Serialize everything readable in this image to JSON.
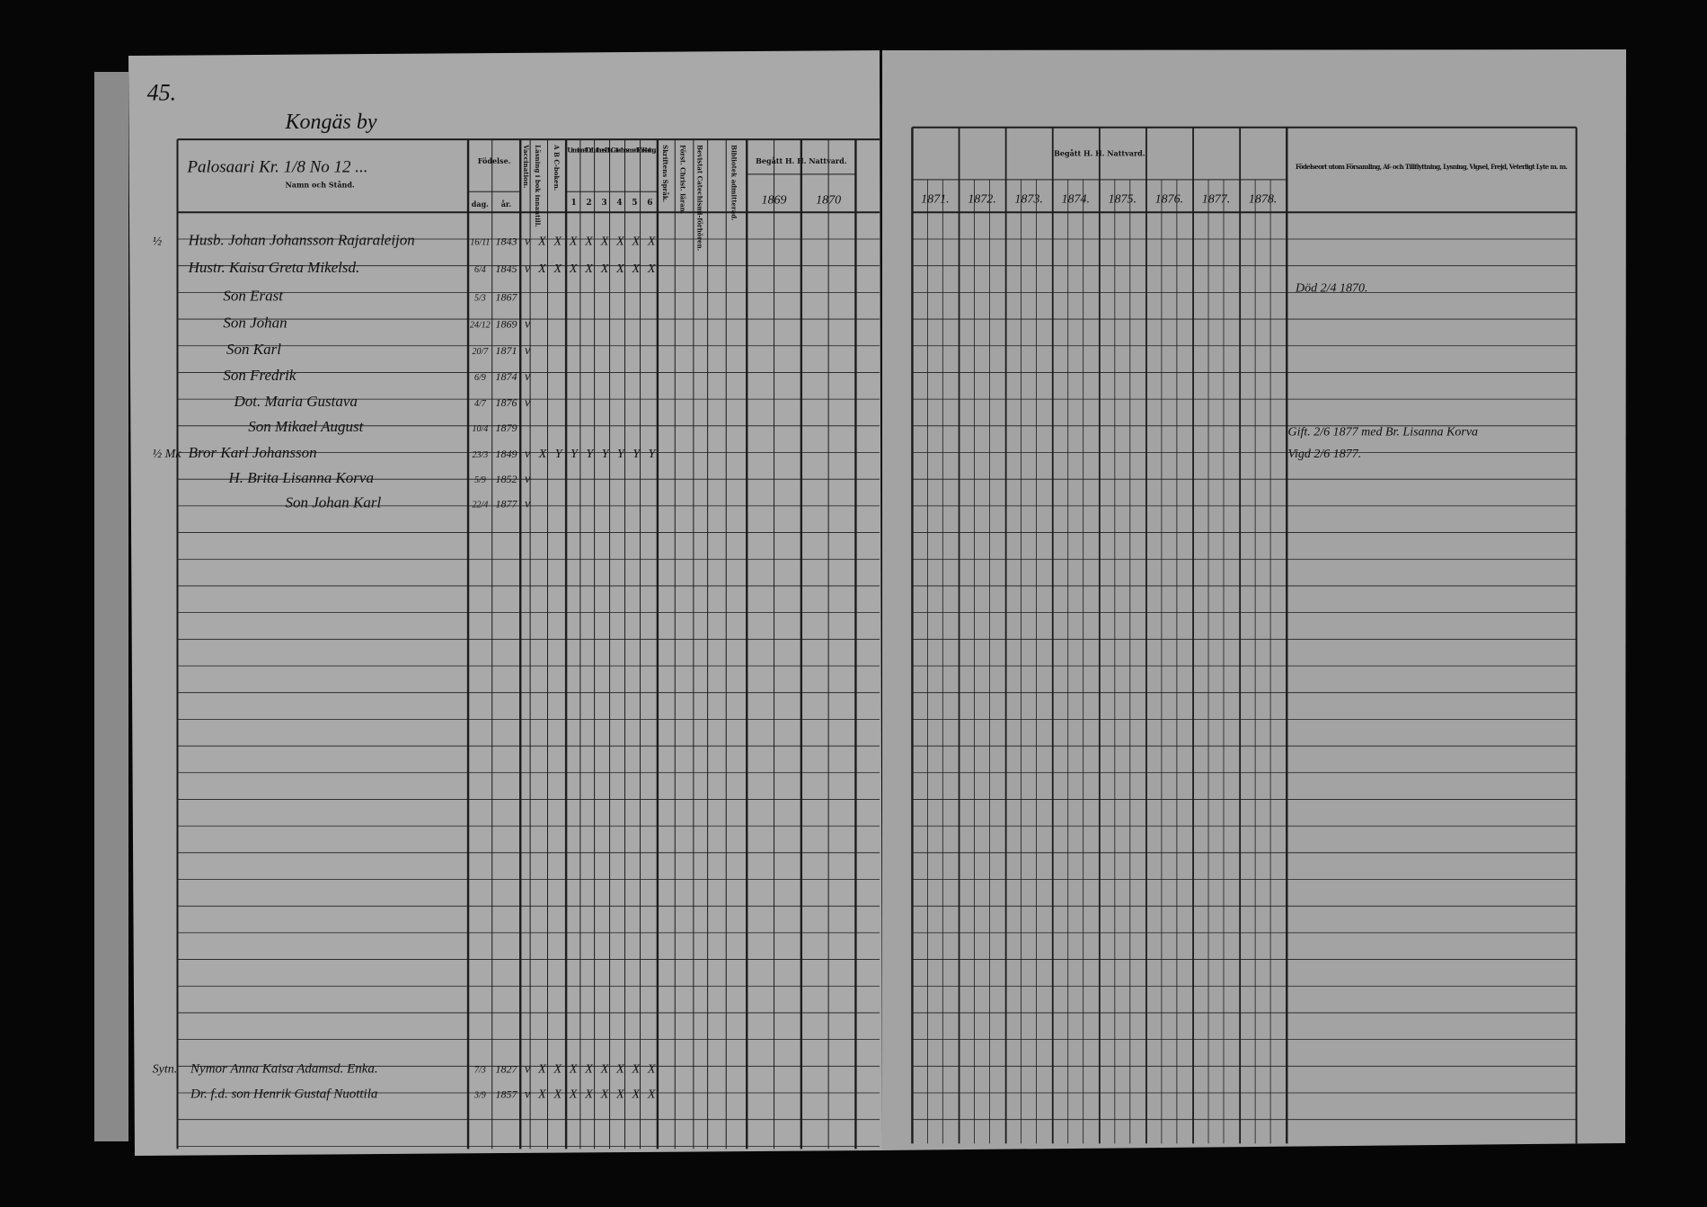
{
  "left_page": {
    "page_number": "45.",
    "village": "Kongäs by",
    "household": "Palosaari Kr. 1/8 No 12 ...",
    "columns": {
      "name": "Namn och Stånd.",
      "birth": "Födelse.",
      "birth_day": "dag.",
      "birth_year": "år.",
      "vaccination": "Vaccination.",
      "reading": "Läsning i bok innantill.",
      "abc": "A B C-boken.",
      "catechism": "Ur minnet Dr Luthers Lilla Catechos med Förklaring.",
      "parts": [
        "1",
        "2",
        "3",
        "4",
        "5",
        "6"
      ],
      "scripture": "Skriftens Språk.",
      "christ": "Först. Christ. läran.",
      "hearings": "Bevistat Catechismi-förhören.",
      "bible": "Bibliotek admitterad.",
      "communion": "Begått H. H. Nattvard.",
      "years": [
        "1869",
        "1870"
      ]
    },
    "rows": [
      {
        "note": "½",
        "name": "Husb. Johan Johansson Rajaraleijon",
        "born": "16/11",
        "year": "1843",
        "marks": "v X X X X X X X X"
      },
      {
        "note": "",
        "name": "Hustr. Kaisa Greta Mikelsd.",
        "born": "6/4",
        "year": "1845",
        "marks": "v X X X X X X X X"
      },
      {
        "note": "",
        "name": "Son Erast",
        "born": "5/3",
        "year": "1867",
        "marks": ""
      },
      {
        "note": "",
        "name": "Son Johan",
        "born": "24/12",
        "year": "1869",
        "marks": "v"
      },
      {
        "note": "",
        "name": "Son Karl",
        "born": "20/7",
        "year": "1871",
        "marks": "v"
      },
      {
        "note": "",
        "name": "Son Fredrik",
        "born": "6/9",
        "year": "1874",
        "marks": "v"
      },
      {
        "note": "",
        "name": "Dot. Maria Gustava",
        "born": "4/7",
        "year": "1876",
        "marks": "v"
      },
      {
        "note": "",
        "name": "Son Mikael August",
        "born": "10/4",
        "year": "1879",
        "marks": ""
      },
      {
        "note": "½ Mk",
        "name": "Bror Karl Johansson",
        "born": "23/3",
        "year": "1849",
        "marks": "v X Y Y Y Y Y Y Y"
      },
      {
        "note": "",
        "name": "H. Brita Lisanna Korva",
        "born": "5/9",
        "year": "1852",
        "marks": "v"
      },
      {
        "note": "",
        "name": "Son Johan Karl",
        "born": "22/4",
        "year": "1877",
        "marks": "v"
      },
      {
        "note": "Sytn.",
        "name": "Nymor Anna Kaisa Adamsd. Enka.",
        "born": "7/3",
        "year": "1827",
        "marks": "v X X X X X X X X"
      },
      {
        "note": "",
        "name": "Dr. f.d. son Henrik Gustaf Nuottila",
        "born": "3/9",
        "year": "1857",
        "marks": "v X X X X X X X X"
      }
    ]
  },
  "right_page": {
    "communion": "Begått H. H. Nattvard.",
    "years": [
      "1871.",
      "1872.",
      "1873.",
      "1874.",
      "1875.",
      "1876.",
      "1877.",
      "1878."
    ],
    "notes_header": "Födelseort utom Församling, Af- och Tillflyttning, Lysning, Vigsel, Frejd, Veterligt Lyte m. m.",
    "notes": [
      "Död 2/4 1870.",
      "Gift. 2/6 1877 med Br. Lisanna Korva",
      "Vigd 2/6 1877."
    ]
  }
}
